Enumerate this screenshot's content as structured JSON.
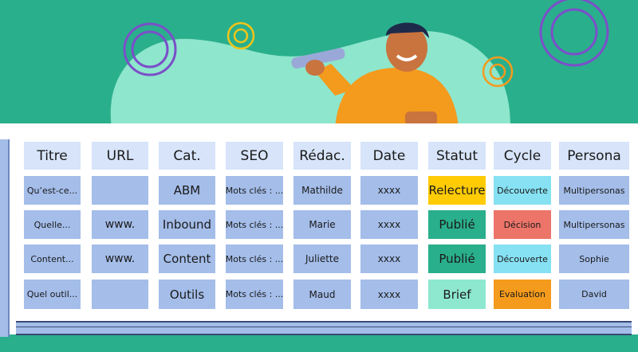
{
  "colors": {
    "background": "#2aaf8c",
    "blob": "#8ee6cc",
    "header_cell": "#d7e4fa",
    "body_cell": "#a4bde9",
    "relecture": "#ffcb05",
    "publie": "#2aaf8c",
    "brief": "#8ee8cf",
    "decouverte": "#86e1f3",
    "decision": "#ec7469",
    "evaluation": "#f49a1c"
  },
  "table": {
    "headers": [
      "Titre",
      "URL",
      "Cat.",
      "SEO",
      "Rédac.",
      "Date",
      "Statut",
      "Cycle",
      "Persona"
    ],
    "rows": [
      {
        "cells": [
          "Qu’est-ce...",
          "",
          "ABM",
          "Mots clés : ...",
          "Mathilde",
          "xxxx",
          "Relecture",
          "Découverte",
          "Multipersonas"
        ],
        "statut_color": "#ffcb05",
        "cycle_color": "#86e1f3"
      },
      {
        "cells": [
          "Quelle...",
          "www.",
          "Inbound",
          "Mots clés : ...",
          "Marie",
          "xxxx",
          "Publié",
          "Décision",
          "Multipersonas"
        ],
        "statut_color": "#2aaf8c",
        "cycle_color": "#ec7469"
      },
      {
        "cells": [
          "Content...",
          "www.",
          "Content",
          "Mots clés : ...",
          "Juliette",
          "xxxx",
          "Publié",
          "Découverte",
          "Sophie"
        ],
        "statut_color": "#2aaf8c",
        "cycle_color": "#86e1f3"
      },
      {
        "cells": [
          "Quel outil...",
          "",
          "Outils",
          "Mots clés : ...",
          "Maud",
          "xxxx",
          "Brief",
          "Evaluation",
          "David"
        ],
        "statut_color": "#8ee8cf",
        "cycle_color": "#f49a1c"
      }
    ]
  }
}
